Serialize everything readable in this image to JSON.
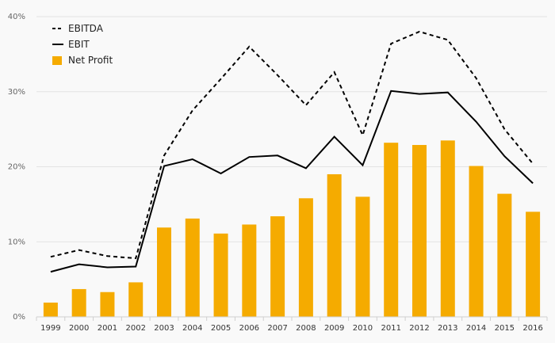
{
  "chart_data": {
    "type": "bar+line",
    "title": "",
    "xlabel": "",
    "ylabel": "",
    "y_unit": "%",
    "ylim": [
      0,
      40
    ],
    "y_ticks": [
      "0%",
      "10%",
      "20%",
      "30%",
      "40%"
    ],
    "grid": true,
    "legend_position": "top-left",
    "categories": [
      "1999",
      "2000",
      "2001",
      "2002",
      "2003",
      "2004",
      "2005",
      "2006",
      "2007",
      "2008",
      "2009",
      "2010",
      "2011",
      "2012",
      "2013",
      "2014",
      "2015",
      "2016"
    ],
    "series": [
      {
        "name": "EBITDA",
        "type": "line",
        "style": "dashed",
        "color": "#000000",
        "values": [
          8.0,
          8.9,
          8.1,
          7.8,
          21.5,
          27.5,
          31.7,
          36.0,
          32.2,
          28.2,
          32.6,
          24.2,
          36.4,
          38.0,
          36.9,
          31.8,
          25.0,
          20.4
        ]
      },
      {
        "name": "EBIT",
        "type": "line",
        "style": "solid",
        "color": "#000000",
        "values": [
          6.0,
          7.0,
          6.6,
          6.7,
          20.1,
          21.0,
          19.1,
          21.3,
          21.5,
          19.8,
          24.0,
          20.2,
          30.1,
          29.7,
          29.9,
          26.0,
          21.4,
          17.8
        ]
      },
      {
        "name": "Net Profit",
        "type": "bar",
        "color": "#f5ab00",
        "values": [
          1.9,
          3.7,
          3.3,
          4.6,
          11.9,
          13.1,
          11.1,
          12.3,
          13.4,
          15.8,
          19.0,
          16.0,
          23.2,
          22.9,
          23.5,
          20.1,
          16.4,
          14.0
        ]
      }
    ]
  }
}
